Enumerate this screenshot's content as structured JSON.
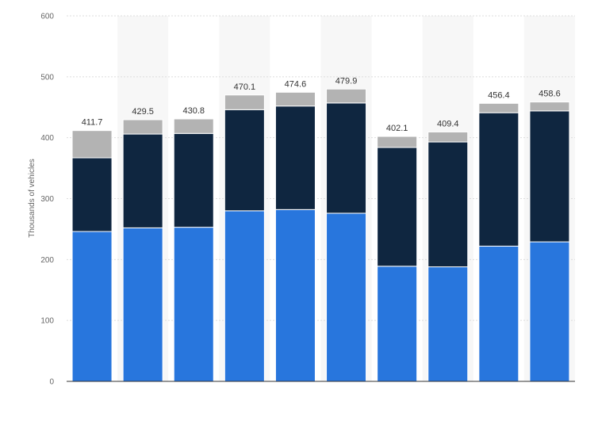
{
  "chart_data": {
    "type": "bar",
    "stacked": true,
    "title": "",
    "xlabel": "",
    "ylabel": "Thousands of vehicles",
    "ylim": [
      0,
      600
    ],
    "yticks": [
      "0",
      "100",
      "200",
      "300",
      "400",
      "500",
      "600"
    ],
    "grid": true,
    "categories": [
      "",
      "",
      "",
      "",
      "",
      "",
      "",
      "",
      "",
      ""
    ],
    "series": [
      {
        "name": "",
        "color": "#2876dd",
        "values": [
          246,
          252,
          253,
          280,
          282,
          276,
          189,
          188,
          222,
          229
        ]
      },
      {
        "name": "",
        "color": "#0f2640",
        "values": [
          121,
          154,
          154,
          166,
          170,
          181,
          195,
          205,
          219,
          215
        ]
      },
      {
        "name": "",
        "color": "#b3b3b3",
        "values": [
          44.7,
          23.5,
          23.8,
          24.1,
          22.6,
          22.9,
          18.1,
          16.4,
          15.4,
          14.6
        ]
      }
    ],
    "totals": [
      "411.7",
      "429.5",
      "430.8",
      "470.1",
      "474.6",
      "479.9",
      "402.1",
      "409.4",
      "456.4",
      "458.6"
    ]
  }
}
